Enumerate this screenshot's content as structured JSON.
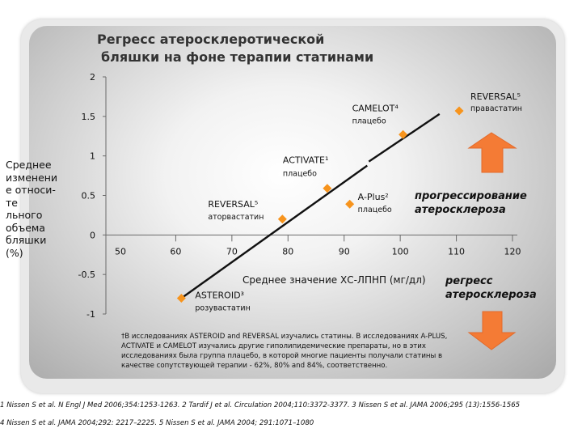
{
  "title": {
    "line1": "Регресс атеросклеротической",
    "line2": "бляшки на фоне терапии статинами"
  },
  "ylabel": "Среднее изменени е относи-те льного объема бляшки (%)",
  "chart_data": {
    "type": "scatter",
    "xlabel": "Среднее значение ХС-ЛПНП (мг/дл)",
    "xlim": [
      50,
      120
    ],
    "ylim": [
      -1,
      2
    ],
    "x_ticks": [
      "50",
      "60",
      "70",
      "80",
      "90",
      "100",
      "110",
      "120"
    ],
    "y_ticks": [
      "2",
      "1.5",
      "1",
      "0.5",
      "0",
      "-0.5",
      "-1"
    ],
    "points": [
      {
        "name": "ASTEROID³",
        "sub": "розувастатин",
        "x": 61,
        "y": -0.8
      },
      {
        "name": "REVERSAL⁵",
        "sub": "аторвастатин",
        "x": 79,
        "y": 0.2
      },
      {
        "name": "ACTIVATE¹",
        "sub": "плацебо",
        "x": 87,
        "y": 0.59
      },
      {
        "name": "A-Plus²",
        "sub": "плацебо",
        "x": 91,
        "y": 0.39
      },
      {
        "name": "CAMELOT⁴",
        "sub": "плацебо",
        "x": 100.5,
        "y": 1.27
      },
      {
        "name": "REVERSAL⁵",
        "sub": "правастатин",
        "x": 110.5,
        "y": 1.57
      }
    ],
    "trendline": {
      "x": [
        61,
        107
      ],
      "y": [
        -0.8,
        1.53
      ]
    },
    "marker_color": "#f7941d",
    "line_color": "#111111",
    "grid": false
  },
  "arrows": {
    "progress_label": "прогрессирование атеросклероза",
    "regress_label": "регресс атеросклероза",
    "color": "#f47b35"
  },
  "footnote": "†В исследованиях ASTEROID and REVERSAL изучались статины. В исследованиях A-PLUS, ACTIVATE и CAMELOT изучались другие гиполипидемические препараты, но в этих исследованиях была группа плацебо, в которой многие пациенты получали статины в качестве сопутствующей терапии - 62%, 80% and 84%, соответственно.",
  "references": {
    "line1": "1 Nissen S et al. N Engl J Med 2006;354:1253-1263.  2 Tardif J et al. Circulation 2004;110:3372-3377. 3 Nissen S et al. JAMA 2006;295 (13):1556-1565",
    "line2": "4 Nissen S et al. JAMA 2004;292: 2217–2225. 5 Nissen S et al. JAMA 2004; 291:1071–1080"
  }
}
